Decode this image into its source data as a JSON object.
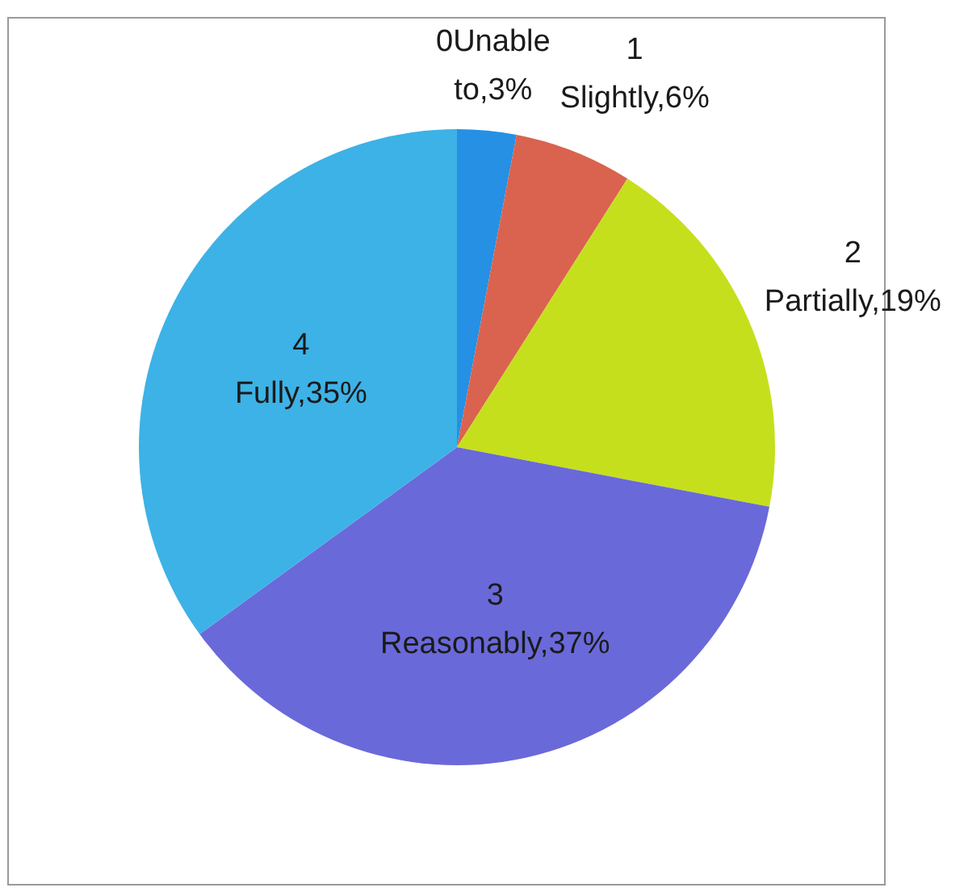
{
  "chart_data": {
    "type": "pie",
    "categories": [
      "0Unable to",
      "1 Slightly",
      "2 Partially",
      "3 Reasonably",
      "4 Fully"
    ],
    "values": [
      3,
      6,
      19,
      37,
      35
    ],
    "colors": [
      "#2590e4",
      "#d9634f",
      "#c6df1c",
      "#6a69d9",
      "#3db2e6"
    ],
    "value_labels": [
      "3%",
      "6%",
      "19%",
      "37%",
      "35%"
    ]
  }
}
